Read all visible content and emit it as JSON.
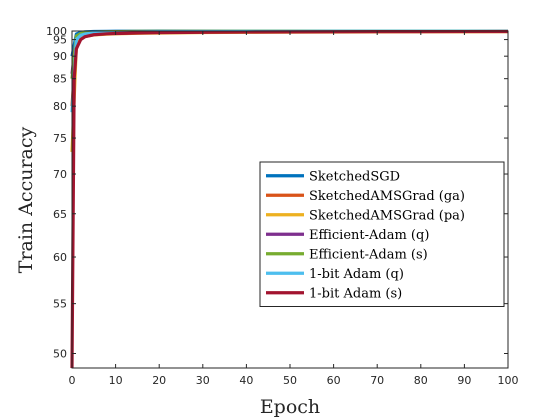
{
  "chart_data": {
    "type": "line",
    "title": "",
    "xlabel": "Epoch",
    "ylabel": "Train Accuracy",
    "xlim": [
      0,
      100
    ],
    "ylim": [
      48.6,
      100.2
    ],
    "y_scale": "nonlinear (spacing widens toward 100)",
    "x_ticks": [
      0,
      10,
      20,
      30,
      40,
      50,
      60,
      70,
      80,
      90,
      100
    ],
    "y_ticks": [
      50,
      55,
      60,
      65,
      70,
      75,
      80,
      85,
      90,
      95,
      100
    ],
    "grid": false,
    "legend_position": "right-center",
    "series": [
      {
        "name": "SketchedSGD",
        "color": "#0072BD",
        "x": [
          0,
          1,
          2,
          3,
          5,
          8,
          10,
          15,
          20,
          30,
          40,
          50,
          60,
          70,
          80,
          90,
          100
        ],
        "y": [
          90,
          97.5,
          98.5,
          99,
          99.3,
          99.5,
          99.6,
          99.75,
          99.85,
          99.9,
          99.93,
          99.95,
          99.96,
          99.97,
          99.97,
          99.98,
          99.98
        ]
      },
      {
        "name": "SketchedAMSGrad (ga)",
        "color": "#D95319",
        "x": [
          0,
          1,
          2,
          3,
          5,
          8,
          10,
          15,
          20,
          30,
          40,
          50,
          60,
          70,
          80,
          90,
          100
        ],
        "y": [
          80,
          94,
          96,
          96.8,
          97.4,
          97.8,
          98,
          98.3,
          98.5,
          98.8,
          99,
          99.15,
          99.25,
          99.35,
          99.4,
          99.45,
          99.5
        ]
      },
      {
        "name": "SketchedAMSGrad (pa)",
        "color": "#EDB120",
        "x": [
          0,
          1,
          2,
          3,
          5,
          8,
          10,
          15,
          20,
          30,
          40,
          50,
          60,
          70,
          80,
          90,
          100
        ],
        "y": [
          73,
          93,
          95.5,
          96.3,
          97,
          97.4,
          97.6,
          97.9,
          98.1,
          98.4,
          98.6,
          98.75,
          98.85,
          98.95,
          99,
          99.05,
          99.1
        ]
      },
      {
        "name": "Efficient-Adam (q)",
        "color": "#7E2F8E",
        "x": [
          0,
          1,
          2,
          3,
          5,
          8,
          10,
          15,
          20,
          30,
          40,
          50,
          60,
          70,
          80,
          90,
          100
        ],
        "y": [
          86,
          96,
          97.3,
          97.9,
          98.4,
          98.7,
          98.9,
          99.1,
          99.25,
          99.4,
          99.5,
          99.55,
          99.6,
          99.65,
          99.7,
          99.72,
          99.75
        ]
      },
      {
        "name": "Efficient-Adam (s)",
        "color": "#77AC30",
        "x": [
          0,
          1,
          2,
          3,
          5,
          8,
          10,
          15,
          20,
          30,
          40,
          50,
          60,
          70,
          80,
          90,
          100
        ],
        "y": [
          85,
          96.5,
          97.8,
          98.3,
          98.8,
          99.1,
          99.25,
          99.45,
          99.55,
          99.7,
          99.78,
          99.83,
          99.86,
          99.88,
          99.9,
          99.91,
          99.92
        ]
      },
      {
        "name": "1-bit Adam (q)",
        "color": "#4DBEEE",
        "x": [
          0,
          1,
          2,
          3,
          5,
          8,
          10,
          15,
          20,
          30,
          40,
          50,
          60,
          70,
          80,
          90,
          100
        ],
        "y": [
          79,
          95,
          96.8,
          97.5,
          98.1,
          98.5,
          98.7,
          99,
          99.15,
          99.35,
          99.45,
          99.55,
          99.6,
          99.65,
          99.7,
          99.72,
          99.75
        ]
      },
      {
        "name": "1-bit Adam (s)",
        "color": "#A2142F",
        "x": [
          0,
          0.5,
          1,
          2,
          3,
          5,
          8,
          10,
          15,
          20,
          30,
          40,
          50,
          60,
          70,
          80,
          90,
          100
        ],
        "y": [
          48.6,
          85,
          92,
          95,
          96.2,
          97.1,
          97.6,
          97.8,
          98.1,
          98.3,
          98.6,
          98.8,
          98.95,
          99.05,
          99.15,
          99.2,
          99.28,
          99.35
        ]
      }
    ]
  }
}
